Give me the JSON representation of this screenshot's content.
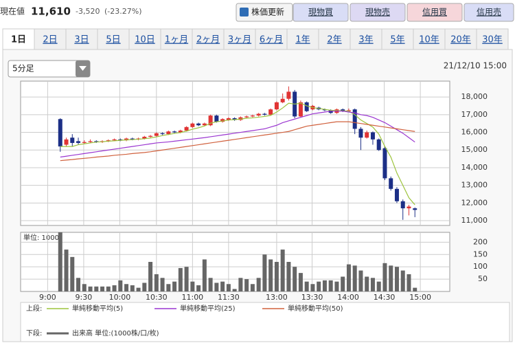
{
  "header": {
    "label": "現在値",
    "price": "11,610",
    "change": "-3,520",
    "change_pct": "(-23.27%)",
    "buttons": [
      "株価更新",
      "現物買",
      "現物売",
      "信用買",
      "信用売"
    ]
  },
  "tabs": {
    "items": [
      "1日",
      "2日",
      "3日",
      "5日",
      "10日",
      "1ヶ月",
      "2ヶ月",
      "3ヶ月",
      "6ヶ月",
      "1年",
      "2年",
      "3年",
      "5年",
      "10年",
      "20年",
      "30年"
    ],
    "active": 0
  },
  "controls": {
    "interval": "5分足",
    "datetime": "21/12/10 15:00"
  },
  "legend": {
    "upper": "上段:",
    "lower": "下段:"
  },
  "chart_data": [
    {
      "type": "candlestick",
      "up_color": "#e03434",
      "down_color": "#1c2f86",
      "open": [
        16750,
        15300,
        15700,
        15500,
        15400,
        15450,
        15500,
        15450,
        15500,
        15550,
        15600,
        15550,
        15650,
        15600,
        15650,
        15750,
        15800,
        15950,
        15900,
        16050,
        16000,
        16100,
        16300,
        16500,
        16400,
        16400,
        16950,
        16600,
        16700,
        16800,
        16700,
        16850,
        16900,
        16950,
        17050,
        17000,
        17300,
        17700,
        17900,
        18300,
        16900,
        17700,
        17300,
        17400,
        17300,
        17250,
        17100,
        17300,
        17200,
        17300,
        16200,
        15700,
        16000,
        15600,
        15100,
        13400,
        12800,
        12100,
        11700,
        11700
      ],
      "high": [
        16800,
        15700,
        15900,
        15700,
        15550,
        15600,
        15550,
        15550,
        15600,
        15650,
        15650,
        15700,
        15700,
        15700,
        15800,
        15850,
        16000,
        16000,
        16100,
        16100,
        16150,
        16350,
        16550,
        16550,
        16550,
        17000,
        17000,
        16800,
        16850,
        16850,
        16900,
        16950,
        17000,
        17100,
        17100,
        17350,
        17750,
        18200,
        18600,
        18400,
        17800,
        17750,
        17550,
        17450,
        17350,
        17300,
        17350,
        17350,
        17350,
        17350,
        16300,
        16100,
        16050,
        15650,
        15200,
        13500,
        12900,
        12200,
        11900,
        11750
      ],
      "low": [
        14900,
        15200,
        15200,
        15300,
        15350,
        15400,
        15400,
        15400,
        15450,
        15500,
        15500,
        15500,
        15550,
        15550,
        15600,
        15700,
        15750,
        15850,
        15850,
        15950,
        15950,
        16050,
        16250,
        16350,
        16350,
        16350,
        16550,
        16550,
        16650,
        16650,
        16650,
        16800,
        16850,
        16900,
        16950,
        16950,
        17250,
        17650,
        17800,
        16800,
        16850,
        17150,
        17250,
        17250,
        17200,
        17050,
        17050,
        17150,
        17150,
        15900,
        15000,
        15650,
        15300,
        14950,
        13300,
        12700,
        12000,
        11050,
        11300,
        11200
      ],
      "close": [
        15200,
        15600,
        15400,
        15400,
        15450,
        15500,
        15450,
        15500,
        15550,
        15600,
        15550,
        15650,
        15600,
        15650,
        15750,
        15800,
        15950,
        15900,
        16050,
        16000,
        16100,
        16300,
        16500,
        16400,
        16500,
        16950,
        16600,
        16750,
        16800,
        16700,
        16850,
        16900,
        16950,
        17050,
        17000,
        17300,
        17700,
        17900,
        18300,
        16900,
        17700,
        17200,
        17500,
        17300,
        17250,
        17100,
        17300,
        17200,
        17250,
        16200,
        15700,
        16000,
        15600,
        15000,
        13400,
        12800,
        12100,
        11700,
        11800,
        11610
      ],
      "series": [
        {
          "name": "単純移動平均(5)",
          "color": "#9cc33c",
          "values": [
            15200,
            15200,
            15200,
            15300,
            15350,
            15400,
            15450,
            15470,
            15500,
            15520,
            15550,
            15570,
            15590,
            15610,
            15640,
            15680,
            15740,
            15820,
            15880,
            15940,
            15990,
            16070,
            16180,
            16260,
            16360,
            16520,
            16600,
            16640,
            16700,
            16720,
            16750,
            16800,
            16820,
            16860,
            16900,
            16960,
            17150,
            17380,
            17650,
            17600,
            17650,
            17500,
            17400,
            17350,
            17300,
            17250,
            17230,
            17220,
            17200,
            17000,
            16700,
            16500,
            16300,
            15900,
            15200,
            14600,
            13700,
            13000,
            12300,
            11900
          ]
        },
        {
          "name": "単純移動平均(25)",
          "color": "#9a35d0",
          "values": [
            14600,
            14650,
            14700,
            14750,
            14800,
            14850,
            14900,
            14950,
            15000,
            15050,
            15100,
            15150,
            15200,
            15250,
            15300,
            15350,
            15400,
            15430,
            15460,
            15500,
            15540,
            15580,
            15620,
            15660,
            15700,
            15750,
            15800,
            15850,
            15900,
            15950,
            16000,
            16050,
            16100,
            16150,
            16200,
            16300,
            16400,
            16550,
            16650,
            16750,
            16850,
            16950,
            17050,
            17100,
            17150,
            17200,
            17200,
            17200,
            17150,
            17100,
            17000,
            16950,
            16850,
            16700,
            16550,
            16350,
            16150,
            15950,
            15700,
            15450
          ]
        },
        {
          "name": "単純移動平均(50)",
          "color": "#d0603c",
          "values": [
            14400,
            14430,
            14460,
            14500,
            14530,
            14560,
            14600,
            14630,
            14660,
            14700,
            14730,
            14760,
            14800,
            14830,
            14860,
            14900,
            14950,
            15000,
            15050,
            15100,
            15150,
            15200,
            15250,
            15300,
            15350,
            15400,
            15450,
            15500,
            15550,
            15600,
            15650,
            15700,
            15750,
            15800,
            15850,
            15900,
            15950,
            16000,
            16050,
            16150,
            16250,
            16350,
            16400,
            16450,
            16500,
            16550,
            16600,
            16600,
            16600,
            16550,
            16500,
            16450,
            16400,
            16350,
            16300,
            16250,
            16200,
            16150,
            16100,
            16050
          ]
        }
      ],
      "xlim": [
        -6.6,
        64.8
      ],
      "ylim": [
        10730,
        18900
      ],
      "yticks": [
        {
          "value": 11000,
          "label": "11,000"
        },
        {
          "value": 12000,
          "label": "12,000"
        },
        {
          "value": 13000,
          "label": "13,000"
        },
        {
          "value": 14000,
          "label": "14,000"
        },
        {
          "value": 15000,
          "label": "15,000"
        },
        {
          "value": 16000,
          "label": "16,000"
        },
        {
          "value": 17000,
          "label": "17,000"
        },
        {
          "value": 18000,
          "label": "18,000"
        }
      ],
      "grid": true
    },
    {
      "type": "bar",
      "unit_label": "単位: 1000",
      "color": "#666666",
      "series": [
        {
          "name": "出来高 単位:(1000株/口/枚)",
          "color": "#666666",
          "values": [
            240,
            170,
            140,
            55,
            30,
            20,
            20,
            20,
            20,
            25,
            45,
            30,
            25,
            15,
            35,
            120,
            70,
            55,
            30,
            40,
            95,
            100,
            40,
            25,
            130,
            55,
            35,
            40,
            30,
            10,
            55,
            50,
            30,
            55,
            150,
            130,
            120,
            170,
            120,
            100,
            75,
            40,
            30,
            40,
            45,
            45,
            40,
            60,
            110,
            105,
            85,
            60,
            55,
            40,
            115,
            105,
            100,
            85,
            70,
            15
          ]
        }
      ],
      "xlim": [
        -6.6,
        64.8
      ],
      "ylim": [
        0,
        240
      ],
      "yticks": [
        50,
        100,
        150,
        200
      ],
      "xticks": [
        {
          "value": -2.1,
          "label": "9:00"
        },
        {
          "value": 3.9,
          "label": "9:30"
        },
        {
          "value": 9.9,
          "label": "10:00"
        },
        {
          "value": 16,
          "label": "10:30"
        },
        {
          "value": 22,
          "label": "11:00"
        },
        {
          "value": 28,
          "label": "11:30"
        },
        {
          "value": 36,
          "label": "13:00"
        },
        {
          "value": 41.9,
          "label": "13:30"
        },
        {
          "value": 47.9,
          "label": "14:00"
        },
        {
          "value": 53.9,
          "label": "14:30"
        },
        {
          "value": 59.9,
          "label": "15:00"
        }
      ],
      "grid": true
    }
  ]
}
